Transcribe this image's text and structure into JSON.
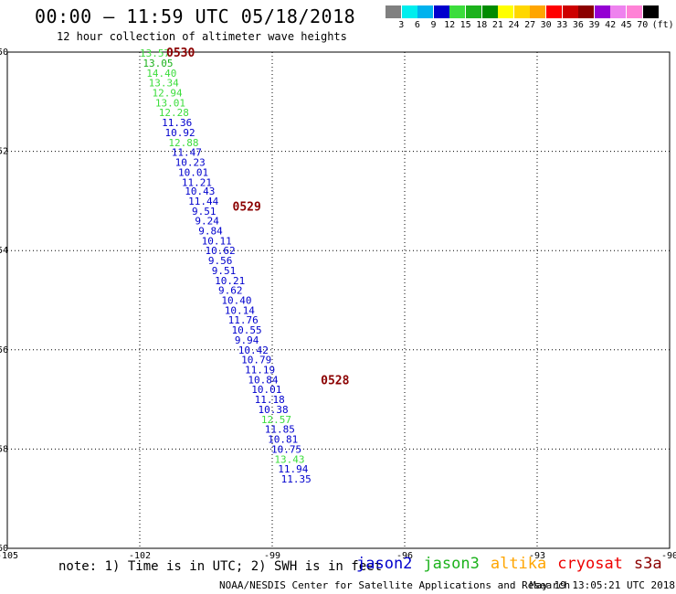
{
  "header": {
    "title": "00:00 – 11:59 UTC 05/18/2018",
    "subtitle": "12 hour collection of altimeter wave heights"
  },
  "color_scale": {
    "colors": [
      "#808080",
      "#00eeee",
      "#00b2ee",
      "#0000cd",
      "#3cdd3c",
      "#1cb21c",
      "#008b00",
      "#ffff00",
      "#ffd700",
      "#ffa500",
      "#ff0000",
      "#cd0000",
      "#8b0000",
      "#9400d3",
      "#ee82ee",
      "#ff82d6",
      "#000000"
    ],
    "labels": [
      "3",
      "6",
      "9",
      "12",
      "15",
      "18",
      "21",
      "24",
      "27",
      "30",
      "33",
      "36",
      "39",
      "42",
      "45",
      "70"
    ],
    "unit": "(ft)"
  },
  "chart_data": {
    "type": "scatter",
    "title": "12 hour collection of altimeter wave heights",
    "xlim": [
      -105,
      -90
    ],
    "ylim": [
      -60,
      -50
    ],
    "x_ticks": [
      "-105",
      "-102",
      "-99",
      "-96",
      "-93",
      "-90"
    ],
    "y_ticks": [
      "-50",
      "-52",
      "-54",
      "-56",
      "-58",
      "-60"
    ],
    "grid": "dotted",
    "time_labels": [
      {
        "text": "0530",
        "lon": -101.4,
        "lat": -50.0
      },
      {
        "text": "0529",
        "lon": -99.9,
        "lat": -53.1
      },
      {
        "text": "0528",
        "lon": -97.9,
        "lat": -56.6
      }
    ],
    "series": [
      {
        "name": "jason2",
        "color": "#0000cd",
        "points": [
          {
            "lon": -102.0,
            "lat": -50.02,
            "value": "13.57",
            "color": "#3cdd3c"
          },
          {
            "lon": -101.93,
            "lat": -50.22,
            "value": "13.05",
            "color": "#1cb21c"
          },
          {
            "lon": -101.85,
            "lat": -50.42,
            "value": "14.40",
            "color": "#3cdd3c"
          },
          {
            "lon": -101.8,
            "lat": -50.62,
            "value": "13.34",
            "color": "#3cdd3c"
          },
          {
            "lon": -101.72,
            "lat": -50.82,
            "value": "12.94",
            "color": "#3cdd3c"
          },
          {
            "lon": -101.65,
            "lat": -51.02,
            "value": "13.01",
            "color": "#3cdd3c"
          },
          {
            "lon": -101.57,
            "lat": -51.22,
            "value": "12.28",
            "color": "#3cdd3c"
          },
          {
            "lon": -101.5,
            "lat": -51.42,
            "value": "11.36"
          },
          {
            "lon": -101.43,
            "lat": -51.62,
            "value": "10.92"
          },
          {
            "lon": -101.35,
            "lat": -51.82,
            "value": "12.88",
            "color": "#3cdd3c"
          },
          {
            "lon": -101.28,
            "lat": -52.02,
            "value": "11.47"
          },
          {
            "lon": -101.2,
            "lat": -52.22,
            "value": "10.23"
          },
          {
            "lon": -101.13,
            "lat": -52.42,
            "value": "10.01"
          },
          {
            "lon": -101.05,
            "lat": -52.62,
            "value": "11.21"
          },
          {
            "lon": -100.98,
            "lat": -52.8,
            "value": "10.43"
          },
          {
            "lon": -100.9,
            "lat": -53.0,
            "value": "11.44"
          },
          {
            "lon": -100.82,
            "lat": -53.2,
            "value": "9.51"
          },
          {
            "lon": -100.75,
            "lat": -53.4,
            "value": "9.24"
          },
          {
            "lon": -100.67,
            "lat": -53.6,
            "value": "9.84"
          },
          {
            "lon": -100.6,
            "lat": -53.8,
            "value": "10.11"
          },
          {
            "lon": -100.52,
            "lat": -54.0,
            "value": "10.62"
          },
          {
            "lon": -100.45,
            "lat": -54.2,
            "value": "9.56"
          },
          {
            "lon": -100.37,
            "lat": -54.4,
            "value": "9.51"
          },
          {
            "lon": -100.3,
            "lat": -54.6,
            "value": "10.21"
          },
          {
            "lon": -100.22,
            "lat": -54.8,
            "value": "9.62"
          },
          {
            "lon": -100.15,
            "lat": -55.0,
            "value": "10.40"
          },
          {
            "lon": -100.08,
            "lat": -55.2,
            "value": "10.14"
          },
          {
            "lon": -100.0,
            "lat": -55.4,
            "value": "11.76"
          },
          {
            "lon": -99.92,
            "lat": -55.6,
            "value": "10.55"
          },
          {
            "lon": -99.85,
            "lat": -55.8,
            "value": "9.94"
          },
          {
            "lon": -99.77,
            "lat": -56.0,
            "value": "10.42"
          },
          {
            "lon": -99.7,
            "lat": -56.2,
            "value": "10.79"
          },
          {
            "lon": -99.62,
            "lat": -56.4,
            "value": "11.19"
          },
          {
            "lon": -99.55,
            "lat": -56.6,
            "value": "10.84"
          },
          {
            "lon": -99.47,
            "lat": -56.8,
            "value": "10.01"
          },
          {
            "lon": -99.4,
            "lat": -57.0,
            "value": "11.18"
          },
          {
            "lon": -99.32,
            "lat": -57.2,
            "value": "10.38"
          },
          {
            "lon": -99.25,
            "lat": -57.4,
            "value": "12.57",
            "color": "#3cdd3c"
          },
          {
            "lon": -99.17,
            "lat": -57.6,
            "value": "11.85"
          },
          {
            "lon": -99.1,
            "lat": -57.8,
            "value": "10.81"
          },
          {
            "lon": -99.02,
            "lat": -58.0,
            "value": "10.75"
          },
          {
            "lon": -98.95,
            "lat": -58.2,
            "value": "13.43",
            "color": "#3cdd3c"
          },
          {
            "lon": -98.87,
            "lat": -58.4,
            "value": "11.94"
          },
          {
            "lon": -98.8,
            "lat": -58.6,
            "value": "11.35"
          }
        ]
      }
    ]
  },
  "footer": {
    "note": "note: 1) Time is in UTC; 2) SWH is in feet",
    "satellites": [
      {
        "name": "jason2",
        "color": "#0000cd"
      },
      {
        "name": "jason3",
        "color": "#1cb21c"
      },
      {
        "name": "altika",
        "color": "#ffa500"
      },
      {
        "name": "cryosat",
        "color": "#ee0000"
      },
      {
        "name": "s3a",
        "color": "#8b0000"
      }
    ],
    "credit": "NOAA/NESDIS Center for Satellite Applications and Research",
    "timestamp": "May 19 13:05:21 UTC 2018"
  }
}
